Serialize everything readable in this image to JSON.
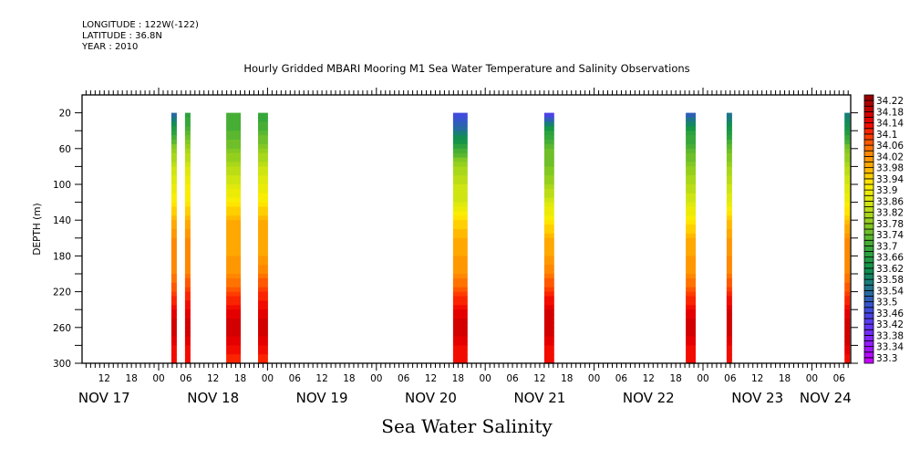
{
  "header": {
    "longitude": "LONGITUDE : 122W(-122)",
    "latitude": "LATITUDE : 36.8N",
    "year": "YEAR : 2010"
  },
  "chart_data": {
    "type": "heatmap",
    "title": "Hourly Gridded MBARI Mooring M1 Sea Water Temperature and Salinity Observations",
    "xlabel": "Sea Water Salinity",
    "ylabel": "DEPTH (m)",
    "x_units": "hours since NOV 18 00:00 (2010)",
    "xlim": [
      -16.9,
      152.6
    ],
    "ylim": [
      300,
      0
    ],
    "y_ticks": [
      "20",
      "60",
      "100",
      "140",
      "180",
      "220",
      "260",
      "300"
    ],
    "y_tick_values": [
      20,
      60,
      100,
      140,
      180,
      220,
      260,
      300
    ],
    "x_hour_labels": [
      {
        "t": -12,
        "label": "12"
      },
      {
        "t": -6,
        "label": "18"
      },
      {
        "t": 0,
        "label": "00"
      },
      {
        "t": 6,
        "label": "06"
      },
      {
        "t": 12,
        "label": "12"
      },
      {
        "t": 18,
        "label": "18"
      },
      {
        "t": 24,
        "label": "00"
      },
      {
        "t": 30,
        "label": "06"
      },
      {
        "t": 36,
        "label": "12"
      },
      {
        "t": 42,
        "label": "18"
      },
      {
        "t": 48,
        "label": "00"
      },
      {
        "t": 54,
        "label": "06"
      },
      {
        "t": 60,
        "label": "12"
      },
      {
        "t": 66,
        "label": "18"
      },
      {
        "t": 72,
        "label": "00"
      },
      {
        "t": 78,
        "label": "06"
      },
      {
        "t": 84,
        "label": "12"
      },
      {
        "t": 90,
        "label": "18"
      },
      {
        "t": 96,
        "label": "00"
      },
      {
        "t": 102,
        "label": "06"
      },
      {
        "t": 108,
        "label": "12"
      },
      {
        "t": 114,
        "label": "18"
      },
      {
        "t": 120,
        "label": "00"
      },
      {
        "t": 126,
        "label": "06"
      },
      {
        "t": 132,
        "label": "12"
      },
      {
        "t": 138,
        "label": "18"
      },
      {
        "t": 144,
        "label": "00"
      },
      {
        "t": 150,
        "label": "06"
      }
    ],
    "x_day_labels": [
      {
        "t": -12,
        "label": "NOV 17"
      },
      {
        "t": 12,
        "label": "NOV 18"
      },
      {
        "t": 36,
        "label": "NOV 19"
      },
      {
        "t": 60,
        "label": "NOV 20"
      },
      {
        "t": 84,
        "label": "NOV 21"
      },
      {
        "t": 108,
        "label": "NOV 22"
      },
      {
        "t": 132,
        "label": "NOV 23"
      },
      {
        "t": 147,
        "label": "NOV 24"
      }
    ],
    "depth_levels": [
      20,
      40,
      60,
      80,
      100,
      120,
      140,
      160,
      180,
      200,
      220,
      240,
      260,
      280,
      300
    ],
    "columns": [
      {
        "t0": 2.8,
        "t1": 4.0,
        "salinity": [
          33.52,
          33.66,
          33.78,
          33.84,
          33.88,
          33.92,
          33.98,
          34.02,
          34.02,
          34.04,
          34.08,
          34.14,
          34.18,
          34.14,
          34.12
        ]
      },
      {
        "t0": 5.8,
        "t1": 7.0,
        "salinity": [
          33.66,
          33.72,
          33.8,
          33.86,
          33.9,
          33.92,
          33.98,
          34.02,
          34.02,
          34.04,
          34.1,
          34.14,
          34.18,
          34.14,
          34.12
        ]
      },
      {
        "t0": 14.9,
        "t1": 18.1,
        "salinity": [
          33.7,
          33.72,
          33.76,
          33.82,
          33.86,
          33.92,
          33.98,
          34.0,
          34.0,
          34.02,
          34.08,
          34.14,
          34.18,
          34.14,
          34.1
        ]
      },
      {
        "t0": 21.9,
        "t1": 24.1,
        "salinity": [
          33.68,
          33.72,
          33.78,
          33.84,
          33.88,
          33.92,
          33.98,
          34.0,
          34.0,
          34.04,
          34.1,
          34.14,
          34.18,
          34.14,
          34.1
        ]
      },
      {
        "t0": 64.9,
        "t1": 68.1,
        "salinity": [
          33.46,
          33.54,
          33.7,
          33.8,
          33.84,
          33.86,
          33.94,
          33.98,
          34.0,
          34.02,
          34.08,
          34.14,
          34.18,
          34.14,
          34.12
        ]
      },
      {
        "t0": 85.0,
        "t1": 87.2,
        "salinity": [
          33.42,
          33.66,
          33.74,
          33.76,
          33.8,
          33.86,
          33.92,
          33.98,
          34.0,
          34.04,
          34.1,
          34.16,
          34.18,
          34.14,
          34.12
        ]
      },
      {
        "t0": 116.2,
        "t1": 118.4,
        "salinity": [
          33.48,
          33.66,
          33.72,
          33.78,
          33.82,
          33.86,
          33.92,
          33.98,
          34.0,
          34.02,
          34.08,
          34.14,
          34.18,
          34.14,
          34.12
        ]
      },
      {
        "t0": 125.2,
        "t1": 126.4,
        "salinity": [
          33.54,
          33.64,
          33.74,
          33.8,
          33.84,
          33.88,
          33.96,
          34.0,
          34.02,
          34.04,
          34.1,
          34.16,
          34.18,
          34.14,
          34.12
        ]
      },
      {
        "t0": 151.2,
        "t1": 152.4,
        "salinity": [
          33.56,
          33.64,
          33.76,
          33.82,
          33.86,
          33.9,
          33.96,
          34.02,
          34.02,
          34.04,
          34.08,
          34.14,
          34.18,
          34.16,
          34.12
        ]
      }
    ],
    "colorbar": {
      "min": 33.28,
      "max": 34.24,
      "step": 0.02,
      "labels": [
        "34.22",
        "34.18",
        "34.14",
        "34.1",
        "34.06",
        "34.02",
        "33.98",
        "33.94",
        "33.9",
        "33.86",
        "33.82",
        "33.78",
        "33.74",
        "33.7",
        "33.66",
        "33.62",
        "33.58",
        "33.54",
        "33.5",
        "33.46",
        "33.42",
        "33.38",
        "33.34",
        "33.3"
      ],
      "label_values": [
        34.22,
        34.18,
        34.14,
        34.1,
        34.06,
        34.02,
        33.98,
        33.94,
        33.9,
        33.86,
        33.82,
        33.78,
        33.74,
        33.7,
        33.66,
        33.62,
        33.58,
        33.54,
        33.5,
        33.46,
        33.42,
        33.38,
        33.34,
        33.3
      ],
      "stops": [
        {
          "v": 33.28,
          "c": "#cc00ff"
        },
        {
          "v": 33.4,
          "c": "#6a30ff"
        },
        {
          "v": 33.48,
          "c": "#3a4fd8"
        },
        {
          "v": 33.56,
          "c": "#1a7a80"
        },
        {
          "v": 33.62,
          "c": "#10924a"
        },
        {
          "v": 33.7,
          "c": "#3caa38"
        },
        {
          "v": 33.78,
          "c": "#8ccc20"
        },
        {
          "v": 33.86,
          "c": "#d8e810"
        },
        {
          "v": 33.92,
          "c": "#ffee00"
        },
        {
          "v": 33.98,
          "c": "#ffb000"
        },
        {
          "v": 34.04,
          "c": "#ff8000"
        },
        {
          "v": 34.1,
          "c": "#ff3000"
        },
        {
          "v": 34.14,
          "c": "#ee0000"
        },
        {
          "v": 34.2,
          "c": "#b80000"
        },
        {
          "v": 34.24,
          "c": "#8a0000"
        }
      ]
    }
  }
}
